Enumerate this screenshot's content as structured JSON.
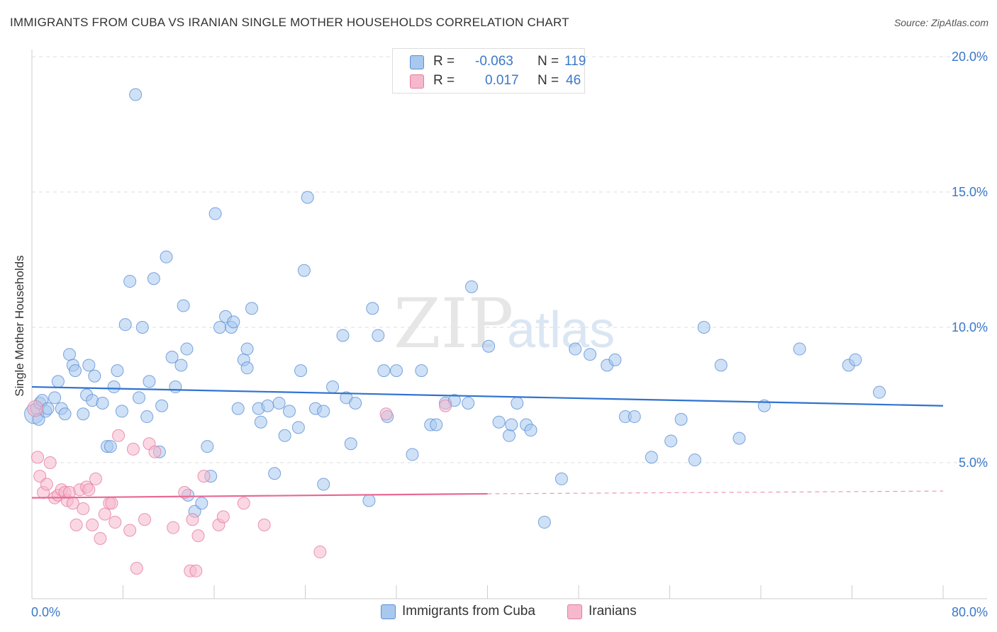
{
  "title": "IMMIGRANTS FROM CUBA VS IRANIAN SINGLE MOTHER HOUSEHOLDS CORRELATION CHART",
  "source": "Source: ZipAtlas.com",
  "watermark": {
    "zip": "ZIP",
    "atlas": "atlas"
  },
  "legend_top": {
    "rows": [
      {
        "r_label": "R =",
        "r_value": "-0.063",
        "n_label": "N =",
        "n_value": "119"
      },
      {
        "r_label": "R =",
        "r_value": "0.017",
        "n_label": "N =",
        "n_value": "46"
      }
    ]
  },
  "legend_bottom": {
    "items": [
      "Immigrants from Cuba",
      "Iranians"
    ]
  },
  "colors": {
    "blue_fill": "#a8c8ee",
    "blue_stroke": "#5b8fd6",
    "blue_line": "#2f72d0",
    "pink_fill": "#f6b8cc",
    "pink_stroke": "#e57c9f",
    "pink_line": "#e86a94",
    "axis_label": "#3a78c9",
    "grid": "#dddddd"
  },
  "chart_data": {
    "type": "scatter",
    "title": "IMMIGRANTS FROM CUBA VS IRANIAN SINGLE MOTHER HOUSEHOLDS CORRELATION CHART",
    "xlabel": "",
    "ylabel": "Single Mother Households",
    "xlim": [
      0,
      80
    ],
    "ylim": [
      0,
      20
    ],
    "x_tick_labels": [
      "0.0%",
      "80.0%"
    ],
    "y_ticks": [
      5,
      10,
      15,
      20
    ],
    "y_tick_labels": [
      "5.0%",
      "10.0%",
      "15.0%",
      "20.0%"
    ],
    "grid": true,
    "legend_position": "top-center",
    "series": [
      {
        "name": "Immigrants from Cuba",
        "color": "#a8c8ee",
        "trend": {
          "x0": 0,
          "y0": 7.8,
          "x1": 80,
          "y1": 7.1
        },
        "points": [
          [
            0.2,
            6.8,
            1.6
          ],
          [
            0.4,
            7.0,
            1
          ],
          [
            0.6,
            6.6,
            1
          ],
          [
            0.7,
            7.2,
            1
          ],
          [
            0.9,
            7.3,
            1
          ],
          [
            1.2,
            6.9,
            1
          ],
          [
            1.4,
            7.0,
            1
          ],
          [
            2.0,
            7.4,
            1
          ],
          [
            2.3,
            8.0,
            1
          ],
          [
            2.6,
            7.0,
            1
          ],
          [
            2.9,
            6.8,
            1
          ],
          [
            3.3,
            9.0,
            1
          ],
          [
            3.6,
            8.6,
            1
          ],
          [
            3.8,
            8.4,
            1
          ],
          [
            4.5,
            6.8,
            1
          ],
          [
            4.8,
            7.5,
            1
          ],
          [
            5.0,
            8.6,
            1
          ],
          [
            5.3,
            7.3,
            1
          ],
          [
            5.5,
            8.2,
            1
          ],
          [
            6.2,
            7.2,
            1
          ],
          [
            6.6,
            5.6,
            1
          ],
          [
            6.9,
            5.6,
            1
          ],
          [
            7.2,
            7.8,
            1
          ],
          [
            7.5,
            8.4,
            1
          ],
          [
            7.9,
            6.9,
            1
          ],
          [
            8.2,
            10.1,
            1
          ],
          [
            8.6,
            11.7,
            1
          ],
          [
            9.1,
            18.6,
            1
          ],
          [
            9.4,
            7.4,
            1
          ],
          [
            9.7,
            10.0,
            1
          ],
          [
            10.1,
            6.7,
            1
          ],
          [
            10.3,
            8.0,
            1
          ],
          [
            10.7,
            11.8,
            1
          ],
          [
            11.2,
            5.4,
            1
          ],
          [
            11.4,
            7.1,
            1
          ],
          [
            11.8,
            12.6,
            1
          ],
          [
            12.3,
            8.9,
            1
          ],
          [
            12.6,
            7.8,
            1
          ],
          [
            13.1,
            8.6,
            1
          ],
          [
            13.3,
            10.8,
            1
          ],
          [
            13.6,
            9.2,
            1
          ],
          [
            14.3,
            3.2,
            1
          ],
          [
            14.9,
            3.5,
            1
          ],
          [
            15.4,
            5.6,
            1
          ],
          [
            15.7,
            4.5,
            1
          ],
          [
            16.1,
            14.2,
            1
          ],
          [
            16.5,
            10.0,
            1
          ],
          [
            17.0,
            10.4,
            1
          ],
          [
            17.5,
            10.0,
            1
          ],
          [
            17.7,
            10.2,
            1
          ],
          [
            18.1,
            7.0,
            1
          ],
          [
            18.6,
            8.8,
            1
          ],
          [
            18.9,
            9.2,
            1
          ],
          [
            19.3,
            10.7,
            1
          ],
          [
            19.9,
            7.0,
            1
          ],
          [
            20.1,
            6.5,
            1
          ],
          [
            20.7,
            7.1,
            1
          ],
          [
            21.3,
            4.6,
            1
          ],
          [
            21.7,
            7.2,
            1
          ],
          [
            22.2,
            6.0,
            1
          ],
          [
            22.6,
            6.9,
            1
          ],
          [
            23.4,
            6.3,
            1
          ],
          [
            23.6,
            8.4,
            1
          ],
          [
            23.9,
            12.1,
            1
          ],
          [
            24.2,
            14.8,
            1
          ],
          [
            24.9,
            7.0,
            1
          ],
          [
            25.6,
            4.2,
            1
          ],
          [
            26.4,
            7.8,
            1
          ],
          [
            27.3,
            9.7,
            1
          ],
          [
            27.6,
            7.4,
            1
          ],
          [
            28.0,
            5.7,
            1
          ],
          [
            28.4,
            7.2,
            1
          ],
          [
            29.6,
            3.6,
            1
          ],
          [
            29.9,
            10.7,
            1
          ],
          [
            30.4,
            9.7,
            1
          ],
          [
            30.9,
            8.4,
            1
          ],
          [
            31.2,
            6.7,
            1
          ],
          [
            32.0,
            8.4,
            1
          ],
          [
            33.4,
            5.3,
            1
          ],
          [
            34.2,
            8.4,
            1
          ],
          [
            35.0,
            6.4,
            1
          ],
          [
            35.5,
            6.4,
            1
          ],
          [
            36.3,
            7.2,
            1
          ],
          [
            37.1,
            7.3,
            1
          ],
          [
            38.6,
            11.5,
            1
          ],
          [
            38.3,
            7.2,
            1
          ],
          [
            40.1,
            9.3,
            1
          ],
          [
            41.0,
            6.5,
            1
          ],
          [
            41.9,
            6.0,
            1
          ],
          [
            42.1,
            6.4,
            1
          ],
          [
            42.6,
            7.2,
            1
          ],
          [
            43.4,
            6.4,
            1
          ],
          [
            43.8,
            6.2,
            1
          ],
          [
            45.0,
            2.8,
            1
          ],
          [
            46.5,
            4.4,
            1
          ],
          [
            47.7,
            9.2,
            1
          ],
          [
            49.0,
            9.0,
            1
          ],
          [
            50.5,
            8.6,
            1
          ],
          [
            51.2,
            8.8,
            1
          ],
          [
            52.1,
            6.7,
            1
          ],
          [
            52.9,
            6.7,
            1
          ],
          [
            54.4,
            5.2,
            1
          ],
          [
            56.1,
            5.8,
            1
          ],
          [
            57.0,
            6.6,
            1
          ],
          [
            58.2,
            5.1,
            1
          ],
          [
            59.0,
            10.0,
            1
          ],
          [
            60.5,
            8.6,
            1
          ],
          [
            62.1,
            5.9,
            1
          ],
          [
            64.3,
            7.1,
            1
          ],
          [
            67.4,
            9.2,
            1
          ],
          [
            71.7,
            8.6,
            1
          ],
          [
            72.3,
            8.8,
            1
          ],
          [
            74.4,
            7.6,
            1
          ],
          [
            18.9,
            8.5,
            1
          ],
          [
            25.6,
            6.9,
            1
          ],
          [
            13.7,
            3.8,
            1
          ]
        ]
      },
      {
        "name": "Iranians",
        "color": "#f6b8cc",
        "trend": {
          "x0": 0,
          "y0": 3.7,
          "x1": 40,
          "y1": 3.85,
          "dash_x1": 80,
          "dash_y1": 3.95
        },
        "points": [
          [
            0.3,
            7.0,
            1.3
          ],
          [
            0.5,
            5.2,
            1
          ],
          [
            0.7,
            4.5,
            1
          ],
          [
            1.0,
            3.9,
            1
          ],
          [
            1.3,
            4.2,
            1
          ],
          [
            1.6,
            5.0,
            1
          ],
          [
            2.0,
            3.7,
            1
          ],
          [
            2.3,
            3.8,
            1
          ],
          [
            2.6,
            4.0,
            1
          ],
          [
            2.9,
            3.9,
            1
          ],
          [
            3.1,
            3.6,
            1
          ],
          [
            3.3,
            3.9,
            1
          ],
          [
            3.6,
            3.5,
            1
          ],
          [
            3.9,
            2.7,
            1
          ],
          [
            4.2,
            4.0,
            1
          ],
          [
            4.5,
            3.3,
            1
          ],
          [
            4.8,
            4.1,
            1
          ],
          [
            5.0,
            4.0,
            1
          ],
          [
            5.3,
            2.7,
            1
          ],
          [
            5.6,
            4.4,
            1
          ],
          [
            6.0,
            2.2,
            1
          ],
          [
            6.4,
            3.1,
            1
          ],
          [
            6.8,
            3.5,
            1
          ],
          [
            7.0,
            3.5,
            1
          ],
          [
            7.3,
            2.8,
            1
          ],
          [
            7.6,
            6.0,
            1
          ],
          [
            8.6,
            2.5,
            1
          ],
          [
            8.9,
            5.5,
            1
          ],
          [
            9.2,
            1.1,
            1
          ],
          [
            9.9,
            2.9,
            1
          ],
          [
            10.3,
            5.7,
            1
          ],
          [
            10.8,
            5.4,
            1
          ],
          [
            12.4,
            2.6,
            1
          ],
          [
            13.4,
            3.9,
            1
          ],
          [
            13.9,
            1.0,
            1
          ],
          [
            14.1,
            2.9,
            1
          ],
          [
            14.4,
            1.0,
            1
          ],
          [
            14.6,
            2.3,
            1
          ],
          [
            15.1,
            4.5,
            1
          ],
          [
            16.4,
            2.7,
            1
          ],
          [
            16.8,
            3.0,
            1
          ],
          [
            18.6,
            3.5,
            1
          ],
          [
            20.4,
            2.7,
            1
          ],
          [
            25.3,
            1.7,
            1
          ],
          [
            31.1,
            6.8,
            1
          ],
          [
            36.3,
            7.1,
            1
          ]
        ]
      }
    ]
  }
}
